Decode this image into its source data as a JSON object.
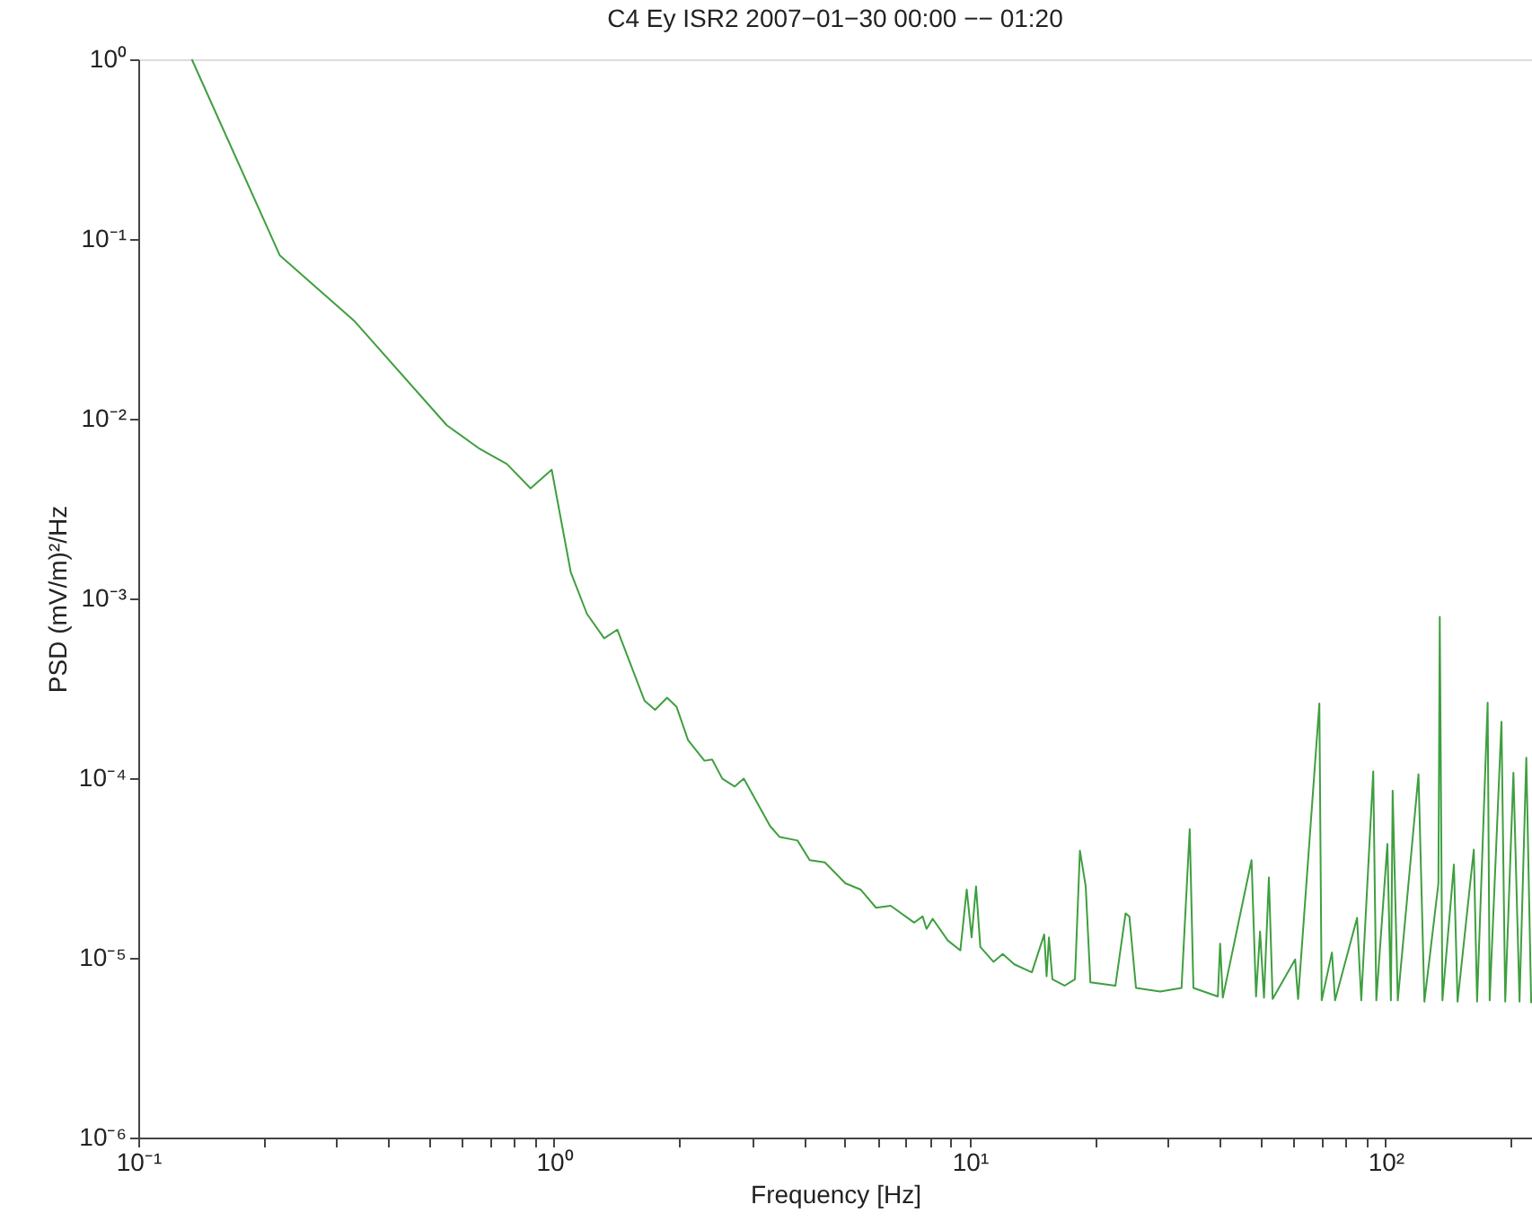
{
  "chart_data": {
    "type": "line",
    "title": "C4 Ey ISR2 2007−01−30 00:00 −− 01:20",
    "xlabel": "Frequency [Hz]",
    "ylabel": "PSD (mV/m)²/Hz",
    "log": "xy",
    "grid": false,
    "legend": false,
    "line_style": "solid",
    "marker": "none",
    "xlim": [
      0.1,
      225
    ],
    "ylim": [
      1e-06,
      1
    ],
    "xticks": [
      {
        "value": 0.1,
        "label": "10⁻¹"
      },
      {
        "value": 0.2,
        "label": null
      },
      {
        "value": 0.3,
        "label": null
      },
      {
        "value": 0.4,
        "label": null
      },
      {
        "value": 0.5,
        "label": null
      },
      {
        "value": 0.6,
        "label": null
      },
      {
        "value": 0.7,
        "label": null
      },
      {
        "value": 0.8,
        "label": null
      },
      {
        "value": 0.9,
        "label": null
      },
      {
        "value": 1,
        "label": "10⁰"
      },
      {
        "value": 2,
        "label": null
      },
      {
        "value": 3,
        "label": null
      },
      {
        "value": 4,
        "label": null
      },
      {
        "value": 5,
        "label": null
      },
      {
        "value": 6,
        "label": null
      },
      {
        "value": 7,
        "label": null
      },
      {
        "value": 8,
        "label": null
      },
      {
        "value": 9,
        "label": null
      },
      {
        "value": 10,
        "label": "10¹"
      },
      {
        "value": 20,
        "label": null
      },
      {
        "value": 30,
        "label": null
      },
      {
        "value": 40,
        "label": null
      },
      {
        "value": 50,
        "label": null
      },
      {
        "value": 60,
        "label": null
      },
      {
        "value": 70,
        "label": null
      },
      {
        "value": 80,
        "label": null
      },
      {
        "value": 90,
        "label": null
      },
      {
        "value": 100,
        "label": "10²"
      },
      {
        "value": 200,
        "label": null
      }
    ],
    "yticks": [
      {
        "value": 1e-06,
        "label": "10⁻⁶"
      },
      {
        "value": 1e-05,
        "label": "10⁻⁵"
      },
      {
        "value": 0.0001,
        "label": "10⁻⁴"
      },
      {
        "value": 0.001,
        "label": "10⁻³"
      },
      {
        "value": 0.01,
        "label": "10⁻²"
      },
      {
        "value": 0.1,
        "label": "10⁻¹"
      },
      {
        "value": 1,
        "label": "10⁰"
      }
    ],
    "series": [
      {
        "color": "#3f9f3f",
        "x": [
          0.1345,
          0.219,
          0.33,
          0.552,
          0.662,
          0.77,
          0.878,
          0.987,
          1.097,
          1.2,
          1.32,
          1.42,
          1.65,
          1.75,
          1.87,
          1.97,
          2.1,
          2.3,
          2.4,
          2.54,
          2.72,
          2.86,
          3.31,
          3.49,
          3.85,
          4.12,
          4.48,
          5.02,
          5.46,
          5.95,
          6.45,
          7.35,
          7.7,
          7.87,
          8.14,
          8.85,
          9.49,
          9.83,
          10.1,
          10.35,
          10.6,
          11.4,
          12.0,
          12.8,
          14.1,
          15.1,
          15.3,
          15.5,
          15.8,
          16.9,
          17.9,
          18.4,
          19.0,
          19.5,
          22.4,
          23.7,
          24.2,
          25.1,
          28.7,
          32.3,
          33.8,
          34.5,
          39.5,
          40.0,
          40.6,
          47.6,
          48.8,
          49.9,
          51.0,
          52.4,
          53.5,
          60.6,
          61.6,
          69.3,
          70.2,
          74.3,
          75.6,
          85.4,
          87.4,
          93.4,
          95.0,
          101,
          103,
          104,
          107,
          120,
          124,
          134,
          135,
          137,
          146,
          149,
          163,
          166,
          176,
          178,
          190,
          194,
          203,
          210,
          218,
          224
        ],
        "values": [
          1.0,
          0.081,
          0.0352,
          0.0092,
          0.0068,
          0.0056,
          0.0041,
          0.0052,
          0.0014,
          0.00082,
          0.0006,
          0.00067,
          0.00027,
          0.00024,
          0.00028,
          0.00025,
          0.000163,
          0.000125,
          0.000127,
          9.93e-05,
          8.98e-05,
          9.93e-05,
          5.4e-05,
          4.7e-05,
          4.5e-05,
          3.5e-05,
          3.4e-05,
          2.6e-05,
          2.4e-05,
          1.9e-05,
          1.95e-05,
          1.57e-05,
          1.7e-05,
          1.45e-05,
          1.65e-05,
          1.25e-05,
          1.1e-05,
          2.4e-05,
          1.3e-05,
          2.5e-05,
          1.15e-05,
          9.5e-06,
          1.05e-05,
          9.2e-06,
          8.3e-06,
          1.35e-05,
          7.9e-06,
          1.3e-05,
          7.6e-06,
          7e-06,
          7.6e-06,
          3.95e-05,
          2.5e-05,
          7.3e-06,
          7e-06,
          1.77e-05,
          1.7e-05,
          6.8e-06,
          6.5e-06,
          6.8e-06,
          5.2e-05,
          6.8e-06,
          6.1e-06,
          1.2e-05,
          6e-06,
          3.5e-05,
          6.1e-06,
          1.4e-05,
          6e-06,
          2.8e-05,
          5.9e-06,
          9.8e-06,
          5.9e-06,
          0.00026,
          5.8e-06,
          1.07e-05,
          5.8e-06,
          1.67e-05,
          5.8e-06,
          0.000109,
          5.8e-06,
          4.3e-05,
          5.8e-06,
          8.5e-05,
          5.8e-06,
          0.000105,
          5.7e-06,
          2.6e-05,
          0.00079,
          5.8e-06,
          3.3e-05,
          5.7e-06,
          4e-05,
          5.7e-06,
          0.000263,
          5.8e-06,
          0.000206,
          5.7e-06,
          0.000107,
          5.7e-06,
          0.00013,
          5.6e-06
        ]
      }
    ]
  }
}
